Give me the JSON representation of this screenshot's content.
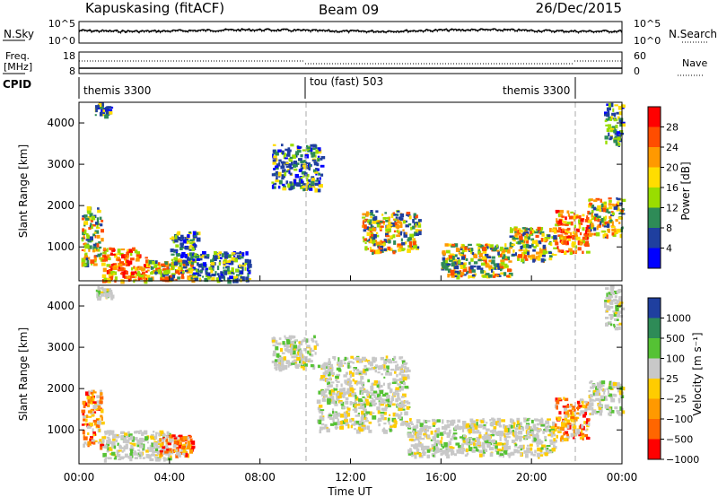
{
  "header": {
    "station": "Kapuskasing (fitACF)",
    "beam": "Beam 09",
    "date": "26/Dec/2015"
  },
  "noise_panel": {
    "left_label": "N.Sky",
    "left_ticks": [
      "10^5",
      "10^0"
    ],
    "right_ticks": [
      "10^5",
      "10^0"
    ],
    "right_label": "N.Search"
  },
  "freq_panel": {
    "left_label_1": "Freq.",
    "left_label_2": "[MHz]",
    "left_ticks": [
      "18",
      "8"
    ],
    "right_ticks": [
      "60",
      "0"
    ],
    "right_label": "Nave"
  },
  "cpid_panel": {
    "label": "CPID",
    "modes": [
      "themis 3300",
      "tou (fast) 503",
      "themis 3300"
    ]
  },
  "chart_data": [
    {
      "type": "heatmap",
      "name": "power",
      "ylabel": "Slant Range [km]",
      "y_ticks": [
        "4000",
        "3000",
        "2000",
        "1000"
      ],
      "x_ticks": [
        "00:00",
        "04:00",
        "08:00",
        "12:00",
        "16:00",
        "20:00",
        "00:00"
      ],
      "xlabel": "",
      "xlim_hours": [
        0,
        24
      ],
      "ylim_km": [
        180,
        4500
      ],
      "colorbar": {
        "label": "Power [dB]",
        "ticks": [
          "28",
          "24",
          "20",
          "16",
          "12",
          "8",
          "4"
        ],
        "colors": [
          "#ff0000",
          "#ff4d00",
          "#ff9900",
          "#ffdd00",
          "#99dd00",
          "#2e8b57",
          "#1f3f9f",
          "#0000ff"
        ]
      },
      "regions": [
        {
          "t0": 0.1,
          "t1": 1.0,
          "r0": 600,
          "r1": 2000,
          "level": "mid"
        },
        {
          "t0": 1.0,
          "t1": 3.0,
          "r0": 200,
          "r1": 1000,
          "level": "high"
        },
        {
          "t0": 3.0,
          "t1": 5.0,
          "r0": 200,
          "r1": 700,
          "level": "mid"
        },
        {
          "t0": 4.0,
          "t1": 5.2,
          "r0": 600,
          "r1": 1400,
          "level": "low"
        },
        {
          "t0": 5.0,
          "t1": 7.5,
          "r0": 200,
          "r1": 900,
          "level": "low"
        },
        {
          "t0": 8.5,
          "t1": 10.7,
          "r0": 2400,
          "r1": 3500,
          "level": "low"
        },
        {
          "t0": 12.5,
          "t1": 15.0,
          "r0": 900,
          "r1": 1900,
          "level": "mid"
        },
        {
          "t0": 16.0,
          "t1": 19.0,
          "r0": 300,
          "r1": 1100,
          "level": "mid"
        },
        {
          "t0": 19.0,
          "t1": 21.0,
          "r0": 700,
          "r1": 1500,
          "level": "mid"
        },
        {
          "t0": 21.0,
          "t1": 22.5,
          "r0": 900,
          "r1": 1900,
          "level": "high"
        },
        {
          "t0": 22.5,
          "t1": 24.0,
          "r0": 1300,
          "r1": 2200,
          "level": "mid"
        },
        {
          "t0": 0.7,
          "t1": 1.4,
          "r0": 4200,
          "r1": 4500,
          "level": "low"
        },
        {
          "t0": 23.2,
          "t1": 24.0,
          "r0": 3500,
          "r1": 4500,
          "level": "low"
        }
      ]
    },
    {
      "type": "heatmap",
      "name": "velocity",
      "ylabel": "Slant Range [km]",
      "y_ticks": [
        "4000",
        "3000",
        "2000",
        "1000"
      ],
      "x_ticks": [
        "00:00",
        "04:00",
        "08:00",
        "12:00",
        "16:00",
        "20:00",
        "00:00"
      ],
      "xlabel": "Time UT",
      "xlim_hours": [
        0,
        24
      ],
      "ylim_km": [
        180,
        4500
      ],
      "colorbar": {
        "label": "Velocity [m s⁻¹]",
        "ticks": [
          "1000",
          "500",
          "100",
          "25",
          "−25",
          "−100",
          "−500",
          "−1000"
        ],
        "colors": [
          "#1f3f9f",
          "#2e8b57",
          "#55c234",
          "#c8c8c8",
          "#ffcc00",
          "#ff9900",
          "#ff6600",
          "#ff0000"
        ]
      },
      "regions": [
        {
          "t0": 0.1,
          "t1": 1.0,
          "r0": 600,
          "r1": 2000,
          "level": "neg"
        },
        {
          "t0": 1.0,
          "t1": 4.0,
          "r0": 300,
          "r1": 1000,
          "level": "gray"
        },
        {
          "t0": 3.5,
          "t1": 5.0,
          "r0": 400,
          "r1": 900,
          "level": "neg"
        },
        {
          "t0": 8.5,
          "t1": 10.5,
          "r0": 2500,
          "r1": 3300,
          "level": "gray"
        },
        {
          "t0": 10.5,
          "t1": 14.5,
          "r0": 1000,
          "r1": 2800,
          "level": "gray"
        },
        {
          "t0": 14.5,
          "t1": 21.0,
          "r0": 400,
          "r1": 1300,
          "level": "gray"
        },
        {
          "t0": 21.0,
          "t1": 22.5,
          "r0": 800,
          "r1": 1800,
          "level": "neg"
        },
        {
          "t0": 22.5,
          "t1": 24.0,
          "r0": 1400,
          "r1": 2200,
          "level": "gray"
        },
        {
          "t0": 0.7,
          "t1": 1.4,
          "r0": 4200,
          "r1": 4500,
          "level": "gray"
        },
        {
          "t0": 23.2,
          "t1": 24.0,
          "r0": 3500,
          "r1": 4500,
          "level": "gray"
        }
      ]
    }
  ]
}
